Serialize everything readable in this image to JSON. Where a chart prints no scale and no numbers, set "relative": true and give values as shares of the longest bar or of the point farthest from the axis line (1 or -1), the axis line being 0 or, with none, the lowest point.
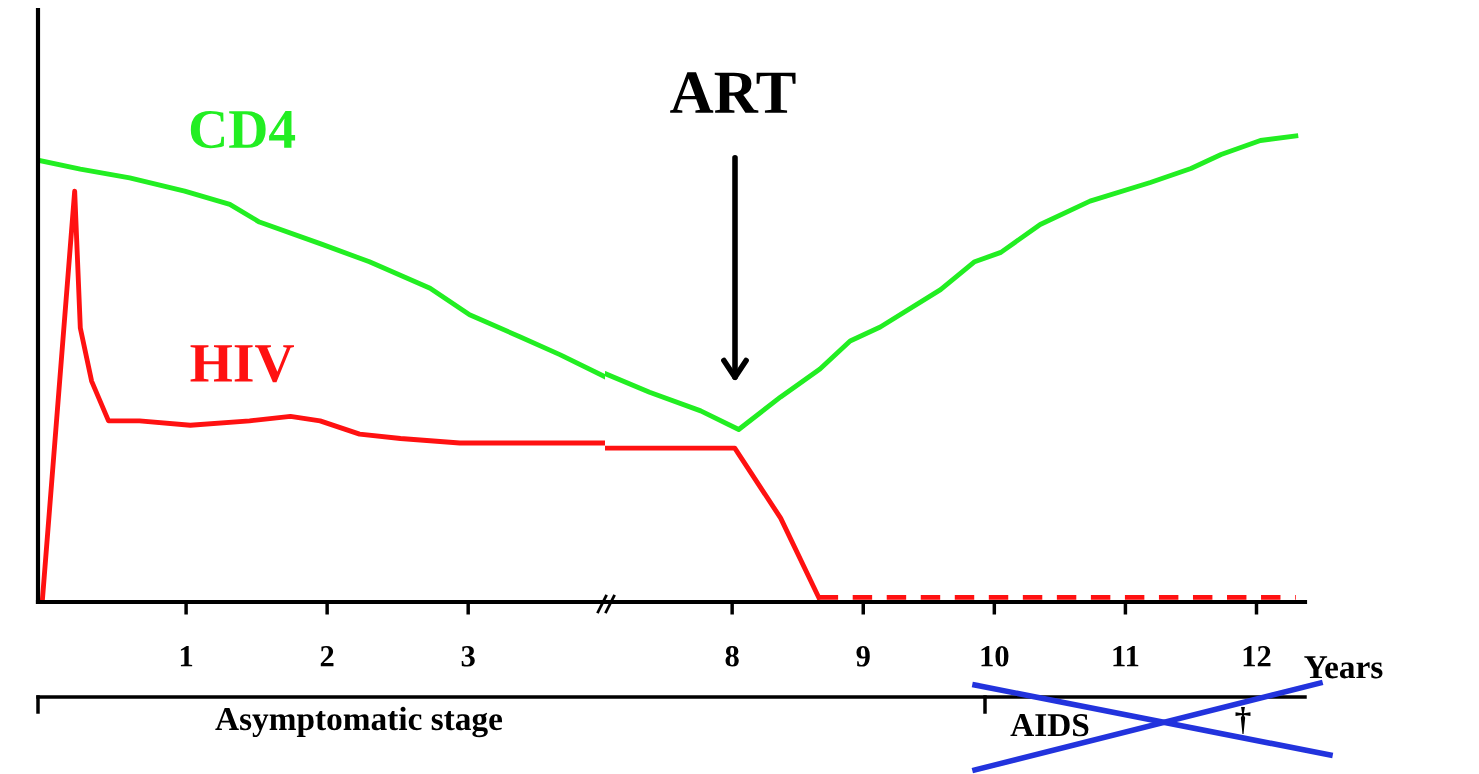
{
  "chart_data": [
    {
      "type": "line",
      "relative": true,
      "xlim": [
        -0.05,
        3.97
      ],
      "xticks": [
        1,
        2,
        3
      ],
      "grid": false,
      "legend": false,
      "series": [
        {
          "name": "CD4",
          "color": "#22ee22",
          "x": [
            -0.05,
            0.25,
            0.6,
            0.99,
            1.31,
            1.52,
            1.96,
            2.3,
            2.73,
            3.01,
            3.37,
            3.65,
            3.97
          ],
          "values": [
            1.0,
            0.98,
            0.96,
            0.93,
            0.9,
            0.86,
            0.81,
            0.77,
            0.71,
            0.65,
            0.6,
            0.56,
            0.51
          ]
        },
        {
          "name": "HIV",
          "color": "#ff1111",
          "x": [
            -0.02,
            0.21,
            0.25,
            0.33,
            0.45,
            0.67,
            1.03,
            1.45,
            1.74,
            1.95,
            2.23,
            2.52,
            2.94,
            3.97
          ],
          "values": [
            0,
            0.93,
            0.62,
            0.5,
            0.41,
            0.41,
            0.4,
            0.41,
            0.42,
            0.41,
            0.38,
            0.37,
            0.36,
            0.36
          ]
        }
      ],
      "annotations": [
        "Asymptomatic stage"
      ]
    },
    {
      "type": "line",
      "relative": true,
      "xlim": [
        7.03,
        12.37
      ],
      "xticks": [
        8,
        9,
        10,
        11,
        12
      ],
      "xlabel": "Years",
      "grid": false,
      "legend": false,
      "series": [
        {
          "color": "#22ee22",
          "x": [
            7.03,
            7.37,
            7.76,
            8.05,
            8.37,
            8.67,
            8.9,
            9.13,
            9.59,
            9.85,
            10.05,
            10.35,
            10.73,
            11.19,
            11.5,
            11.73,
            12.03,
            12.3
          ],
          "values": [
            0.49,
            0.45,
            0.41,
            0.37,
            0.44,
            0.5,
            0.56,
            0.59,
            0.67,
            0.73,
            0.75,
            0.81,
            0.86,
            0.9,
            0.93,
            0.96,
            0.99,
            1.0
          ]
        },
        {
          "color": "#ff1111",
          "x": [
            7.03,
            7.6,
            8.02,
            8.37,
            8.66
          ],
          "values": [
            0.33,
            0.33,
            0.33,
            0.18,
            0.01
          ]
        },
        {
          "color": "#ff1111",
          "line_style": "dashed",
          "x": [
            8.66,
            9.29,
            10.82,
            12.3
          ],
          "values": [
            0.01,
            0.01,
            0.01,
            0.01
          ]
        }
      ],
      "annotations": [
        "ART",
        "AIDS",
        "†"
      ]
    }
  ]
}
